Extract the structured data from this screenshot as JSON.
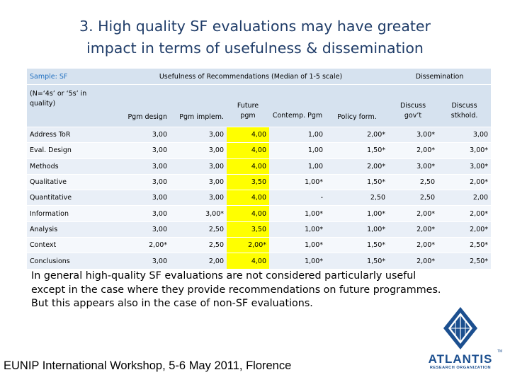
{
  "title": {
    "line1": "3. High quality SF evaluations may have greater",
    "line2": "impact in terms of usefulness & dissemination"
  },
  "table": {
    "header1": {
      "sample": "Sample: SF",
      "usefulness": "Usefulness of Recommendations (Median of 1-5 scale)",
      "dissemination": "Dissemination"
    },
    "header2": {
      "rowlabel": "(N=‘4s’ or ‘5s’ in quality)",
      "columns": [
        "Pgm design",
        "Pgm implem.",
        "Future pgm",
        "Contemp. Pgm",
        "Policy form.",
        "Discuss gov’t",
        "Discuss stkhold."
      ]
    },
    "rows": [
      {
        "label": "Address ToR",
        "values": [
          "3,00",
          "3,00",
          "4,00",
          "1,00",
          "2,00*",
          "3,00*",
          "3,00"
        ]
      },
      {
        "label": "Eval. Design",
        "values": [
          "3,00",
          "3,00",
          "4,00",
          "1,00",
          "1,50*",
          "2,00*",
          "3,00*"
        ]
      },
      {
        "label": "Methods",
        "values": [
          "3,00",
          "3,00",
          "4,00",
          "1,00",
          "2,00*",
          "3,00*",
          "3,00*"
        ]
      },
      {
        "label": "Qualitative",
        "values": [
          "3,00",
          "3,00",
          "3,50",
          "1,00*",
          "1,50*",
          "2,50",
          "2,00*"
        ]
      },
      {
        "label": "Quantitative",
        "values": [
          "3,00",
          "3,00",
          "4,00",
          "-",
          "2,50",
          "2,50",
          "2,00"
        ]
      },
      {
        "label": "Information",
        "values": [
          "3,00",
          "3,00*",
          "4,00",
          "1,00*",
          "1,00*",
          "2,00*",
          "2,00*"
        ]
      },
      {
        "label": "Analysis",
        "values": [
          "3,00",
          "2,50",
          "3,50",
          "1,00*",
          "1,00*",
          "2,00*",
          "2,00*"
        ]
      },
      {
        "label": "Context",
        "values": [
          "2,00*",
          "2,50",
          "2,00*",
          "1,00*",
          "1,50*",
          "2,00*",
          "2,50*"
        ]
      },
      {
        "label": "Conclusions",
        "values": [
          "3,00",
          "2,00",
          "4,00",
          "1,00*",
          "1,50*",
          "2,00*",
          "2,50*"
        ]
      }
    ],
    "highlight_color": "#ffff00"
  },
  "body": {
    "line1": "In general high-quality SF evaluations are not considered particularly useful",
    "line2": "except in the case where they provide recommendations on future programmes.",
    "line3": "But this appears also in the case of non-SF evaluations."
  },
  "footer": "EUNIP International Workshop, 5-6 May 2011, Florence",
  "logo": {
    "word": "ATLANTIS",
    "sub": "RESEARCH ORGANIZATION",
    "tm": "TM",
    "color": "#1c4f8f"
  }
}
